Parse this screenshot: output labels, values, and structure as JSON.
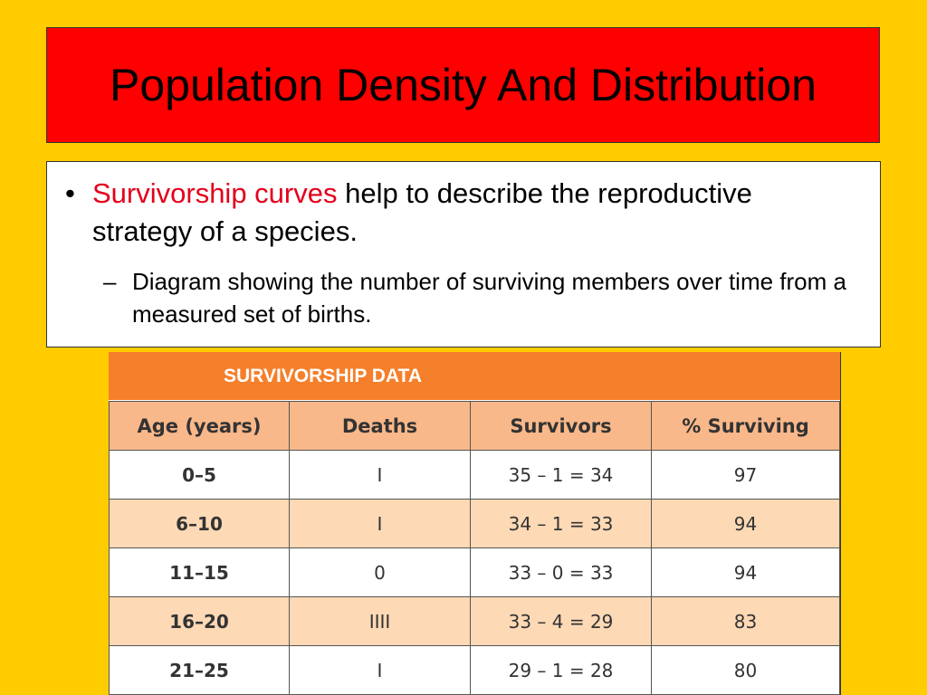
{
  "slide": {
    "title": "Population Density And Distribution",
    "bullet1": {
      "marker": "•",
      "highlight": "Survivorship curves",
      "text": " help to describe the reproductive strategy of a species."
    },
    "bullet2": {
      "marker": "–",
      "text": "Diagram showing the number of surviving members over time from a measured set of births."
    }
  },
  "table": {
    "title": "SURVIVORSHIP DATA",
    "headers": [
      "Age (years)",
      "Deaths",
      "Survivors",
      "% Surviving"
    ],
    "rows": [
      {
        "age": "0–5",
        "deaths": "I",
        "survivors": "35 – 1 = 34",
        "pct": "97"
      },
      {
        "age": "6–10",
        "deaths": "I",
        "survivors": "34 – 1 = 33",
        "pct": "94"
      },
      {
        "age": "11–15",
        "deaths": "0",
        "survivors": "33 – 0 = 33",
        "pct": "94"
      },
      {
        "age": "16–20",
        "deaths": "IIII",
        "survivors": "33 – 4 = 29",
        "pct": "83"
      },
      {
        "age": "21–25",
        "deaths": "I",
        "survivors": "29 – 1 = 28",
        "pct": "80"
      }
    ]
  },
  "colors": {
    "background": "#FFCC00",
    "title_box": "#FF0000",
    "highlight": "#E3001B",
    "table_header": "#F57F2A",
    "table_subheader": "#F9B88A",
    "table_alt_row": "#FDD9B5"
  }
}
